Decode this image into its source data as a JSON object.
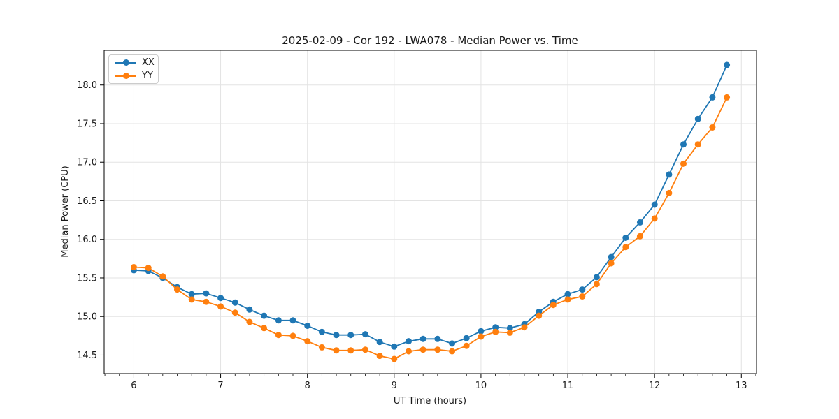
{
  "chart_data": {
    "type": "line",
    "title": "2025-02-09 - Cor 192 - LWA078 - Median Power vs. Time",
    "xlabel": "UT Time (hours)",
    "ylabel": "Median Power (CPU)",
    "xlim": [
      5.658,
      13.175
    ],
    "ylim": [
      14.26,
      18.45
    ],
    "xticks": [
      6,
      7,
      8,
      9,
      10,
      11,
      12,
      13
    ],
    "yticks": [
      14.5,
      15.0,
      15.5,
      16.0,
      16.5,
      17.0,
      17.5,
      18.0
    ],
    "minor_xtick_step": 0.1667,
    "grid": true,
    "legend_position": "upper left",
    "x": [
      6.0,
      6.167,
      6.333,
      6.5,
      6.667,
      6.833,
      7.0,
      7.167,
      7.333,
      7.5,
      7.667,
      7.833,
      8.0,
      8.167,
      8.333,
      8.5,
      8.667,
      8.833,
      9.0,
      9.167,
      9.333,
      9.5,
      9.667,
      9.833,
      10.0,
      10.167,
      10.333,
      10.5,
      10.667,
      10.833,
      11.0,
      11.167,
      11.333,
      11.5,
      11.667,
      11.833,
      12.0,
      12.167,
      12.333,
      12.5,
      12.667,
      12.833
    ],
    "series": [
      {
        "name": "XX",
        "color": "#1f77b4",
        "values": [
          15.6,
          15.59,
          15.5,
          15.38,
          15.29,
          15.3,
          15.24,
          15.18,
          15.09,
          15.01,
          14.95,
          14.95,
          14.88,
          14.8,
          14.76,
          14.76,
          14.77,
          14.67,
          14.61,
          14.68,
          14.71,
          14.71,
          14.65,
          14.72,
          14.81,
          14.86,
          14.85,
          14.9,
          15.06,
          15.19,
          15.29,
          15.35,
          15.51,
          15.77,
          16.02,
          16.22,
          16.45,
          16.84,
          17.23,
          17.56,
          17.84,
          18.26
        ]
      },
      {
        "name": "YY",
        "color": "#ff7f0e",
        "values": [
          15.64,
          15.63,
          15.52,
          15.35,
          15.22,
          15.19,
          15.13,
          15.05,
          14.93,
          14.85,
          14.76,
          14.75,
          14.68,
          14.6,
          14.56,
          14.56,
          14.57,
          14.49,
          14.45,
          14.55,
          14.57,
          14.57,
          14.55,
          14.62,
          14.74,
          14.8,
          14.79,
          14.86,
          15.01,
          15.15,
          15.22,
          15.26,
          15.42,
          15.69,
          15.9,
          16.04,
          16.27,
          16.6,
          16.98,
          17.23,
          17.45,
          17.84
        ]
      }
    ]
  }
}
